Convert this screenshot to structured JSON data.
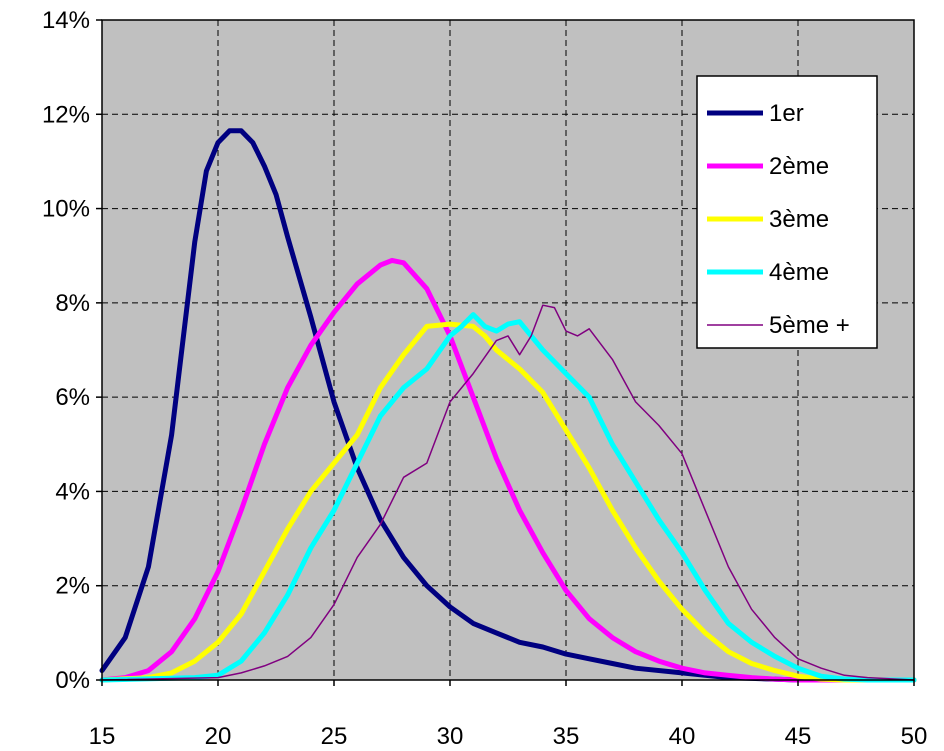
{
  "chart_data": {
    "type": "line",
    "title": "",
    "xlabel": "",
    "ylabel": "",
    "xlim": [
      15,
      50
    ],
    "ylim": [
      0,
      14
    ],
    "x_ticks": [
      15,
      20,
      25,
      30,
      35,
      40,
      45,
      50
    ],
    "y_ticks": [
      0,
      2,
      4,
      6,
      8,
      10,
      12,
      14
    ],
    "x_tick_labels": [
      "15",
      "20",
      "25",
      "30",
      "35",
      "40",
      "45",
      "50"
    ],
    "y_tick_labels": [
      "0%",
      "2%",
      "4%",
      "6%",
      "8%",
      "10%",
      "12%",
      "14%"
    ],
    "y_unit": "%",
    "grid": true,
    "plot_background": "#c0c0c0",
    "legend_position": "top-right",
    "series": [
      {
        "name": "1er",
        "color": "#000080",
        "line_width": 5,
        "points": [
          [
            15,
            0.2
          ],
          [
            16,
            0.9
          ],
          [
            17,
            2.4
          ],
          [
            18,
            5.2
          ],
          [
            19,
            9.3
          ],
          [
            19.5,
            10.8
          ],
          [
            20,
            11.4
          ],
          [
            20.5,
            11.65
          ],
          [
            21,
            11.65
          ],
          [
            21.5,
            11.4
          ],
          [
            22,
            10.9
          ],
          [
            22.5,
            10.3
          ],
          [
            23,
            9.4
          ],
          [
            24,
            7.7
          ],
          [
            25,
            5.9
          ],
          [
            26,
            4.5
          ],
          [
            27,
            3.4
          ],
          [
            28,
            2.6
          ],
          [
            29,
            2.0
          ],
          [
            30,
            1.55
          ],
          [
            31,
            1.2
          ],
          [
            32,
            1.0
          ],
          [
            33,
            0.8
          ],
          [
            34,
            0.7
          ],
          [
            35,
            0.55
          ],
          [
            36,
            0.45
          ],
          [
            37,
            0.35
          ],
          [
            38,
            0.25
          ],
          [
            40,
            0.15
          ],
          [
            42,
            0.05
          ],
          [
            45,
            0
          ],
          [
            50,
            0
          ]
        ]
      },
      {
        "name": "2ème",
        "color": "#ff00ff",
        "line_width": 5,
        "points": [
          [
            15,
            0
          ],
          [
            16,
            0.05
          ],
          [
            17,
            0.2
          ],
          [
            18,
            0.6
          ],
          [
            19,
            1.3
          ],
          [
            20,
            2.3
          ],
          [
            21,
            3.6
          ],
          [
            22,
            5.0
          ],
          [
            23,
            6.2
          ],
          [
            24,
            7.1
          ],
          [
            25,
            7.8
          ],
          [
            26,
            8.4
          ],
          [
            27,
            8.8
          ],
          [
            27.5,
            8.9
          ],
          [
            28,
            8.85
          ],
          [
            29,
            8.3
          ],
          [
            30,
            7.3
          ],
          [
            31,
            6.0
          ],
          [
            32,
            4.7
          ],
          [
            33,
            3.6
          ],
          [
            34,
            2.7
          ],
          [
            35,
            1.9
          ],
          [
            36,
            1.3
          ],
          [
            37,
            0.9
          ],
          [
            38,
            0.6
          ],
          [
            39,
            0.4
          ],
          [
            40,
            0.25
          ],
          [
            41,
            0.15
          ],
          [
            42,
            0.1
          ],
          [
            43,
            0.05
          ],
          [
            44,
            0.02
          ],
          [
            45,
            0
          ],
          [
            50,
            0
          ]
        ]
      },
      {
        "name": "3ème",
        "color": "#ffff00",
        "line_width": 5,
        "points": [
          [
            15,
            0
          ],
          [
            17,
            0.05
          ],
          [
            18,
            0.15
          ],
          [
            19,
            0.4
          ],
          [
            20,
            0.8
          ],
          [
            21,
            1.4
          ],
          [
            22,
            2.3
          ],
          [
            23,
            3.2
          ],
          [
            24,
            4.0
          ],
          [
            25,
            4.6
          ],
          [
            26,
            5.2
          ],
          [
            27,
            6.2
          ],
          [
            28,
            6.9
          ],
          [
            29,
            7.5
          ],
          [
            30,
            7.55
          ],
          [
            31,
            7.5
          ],
          [
            31.5,
            7.3
          ],
          [
            32,
            7.0
          ],
          [
            33,
            6.6
          ],
          [
            34,
            6.1
          ],
          [
            35,
            5.3
          ],
          [
            36,
            4.5
          ],
          [
            37,
            3.6
          ],
          [
            38,
            2.8
          ],
          [
            39,
            2.1
          ],
          [
            40,
            1.5
          ],
          [
            41,
            1.0
          ],
          [
            42,
            0.6
          ],
          [
            43,
            0.35
          ],
          [
            44,
            0.2
          ],
          [
            45,
            0.08
          ],
          [
            46,
            0.02
          ],
          [
            47,
            0
          ],
          [
            50,
            0
          ]
        ]
      },
      {
        "name": "4ème",
        "color": "#00ffff",
        "line_width": 5,
        "points": [
          [
            15,
            0
          ],
          [
            19,
            0.05
          ],
          [
            20,
            0.1
          ],
          [
            21,
            0.4
          ],
          [
            22,
            1.0
          ],
          [
            23,
            1.8
          ],
          [
            24,
            2.8
          ],
          [
            25,
            3.6
          ],
          [
            26,
            4.6
          ],
          [
            27,
            5.6
          ],
          [
            28,
            6.2
          ],
          [
            29,
            6.6
          ],
          [
            30,
            7.3
          ],
          [
            30.5,
            7.5
          ],
          [
            31,
            7.75
          ],
          [
            31.5,
            7.5
          ],
          [
            32,
            7.4
          ],
          [
            32.5,
            7.55
          ],
          [
            33,
            7.6
          ],
          [
            33.5,
            7.3
          ],
          [
            34,
            7.0
          ],
          [
            35,
            6.5
          ],
          [
            36,
            6.0
          ],
          [
            37,
            5.0
          ],
          [
            38,
            4.2
          ],
          [
            39,
            3.4
          ],
          [
            40,
            2.7
          ],
          [
            41,
            1.9
          ],
          [
            42,
            1.2
          ],
          [
            43,
            0.8
          ],
          [
            44,
            0.5
          ],
          [
            45,
            0.25
          ],
          [
            46,
            0.08
          ],
          [
            47,
            0.02
          ],
          [
            48,
            0
          ],
          [
            50,
            0
          ]
        ]
      },
      {
        "name": "5ème +",
        "color": "#800080",
        "line_width": 1.5,
        "points": [
          [
            15,
            0
          ],
          [
            20,
            0.05
          ],
          [
            21,
            0.15
          ],
          [
            22,
            0.3
          ],
          [
            23,
            0.5
          ],
          [
            24,
            0.9
          ],
          [
            25,
            1.6
          ],
          [
            26,
            2.6
          ],
          [
            27,
            3.3
          ],
          [
            28,
            4.3
          ],
          [
            29,
            4.6
          ],
          [
            30,
            5.9
          ],
          [
            31,
            6.5
          ],
          [
            32,
            7.2
          ],
          [
            32.5,
            7.3
          ],
          [
            33,
            6.9
          ],
          [
            33.5,
            7.3
          ],
          [
            34,
            7.95
          ],
          [
            34.5,
            7.9
          ],
          [
            35,
            7.4
          ],
          [
            35.5,
            7.3
          ],
          [
            36,
            7.45
          ],
          [
            37,
            6.8
          ],
          [
            38,
            5.9
          ],
          [
            39,
            5.4
          ],
          [
            40,
            4.8
          ],
          [
            41,
            3.6
          ],
          [
            42,
            2.4
          ],
          [
            43,
            1.5
          ],
          [
            44,
            0.9
          ],
          [
            45,
            0.45
          ],
          [
            46,
            0.25
          ],
          [
            47,
            0.1
          ],
          [
            48,
            0.05
          ],
          [
            50,
            0
          ]
        ]
      }
    ]
  }
}
